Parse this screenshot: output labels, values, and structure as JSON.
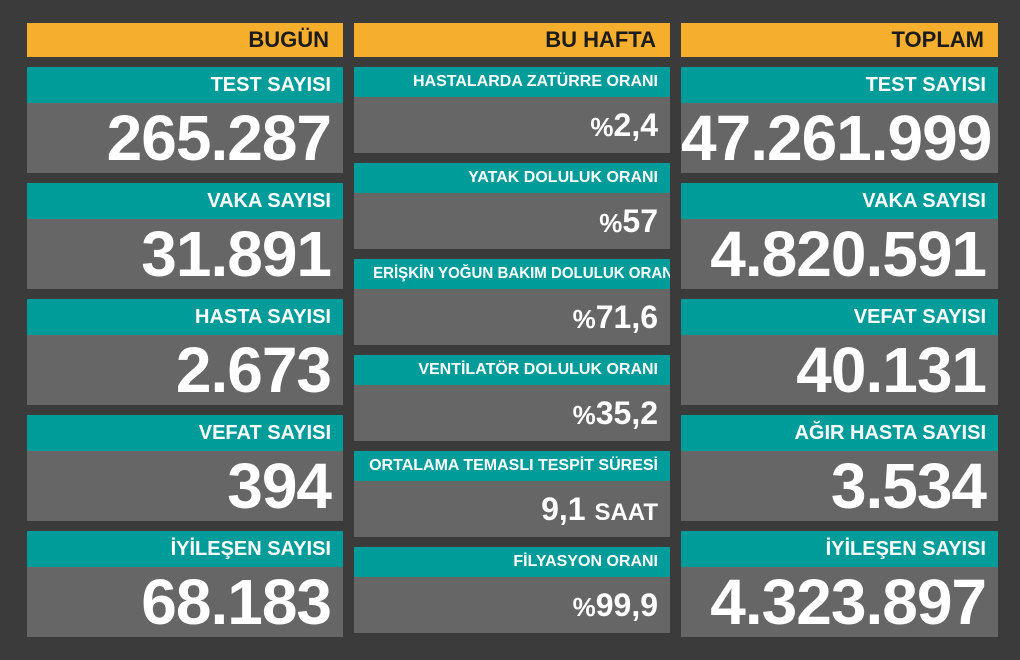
{
  "columns": {
    "today": {
      "header": "BUGÜN",
      "cards": [
        {
          "label": "TEST SAYISI",
          "value": "265.287"
        },
        {
          "label": "VAKA SAYISI",
          "value": "31.891"
        },
        {
          "label": "HASTA SAYISI",
          "value": "2.673"
        },
        {
          "label": "VEFAT SAYISI",
          "value": "394"
        },
        {
          "label": "İYİLEŞEN SAYISI",
          "value": "68.183"
        }
      ]
    },
    "week": {
      "header": "BU HAFTA",
      "cards": [
        {
          "label": "HASTALARDA ZATÜRRE ORANI",
          "prefix": "%",
          "value": "2,4"
        },
        {
          "label": "YATAK DOLULUK ORANI",
          "prefix": "%",
          "value": "57"
        },
        {
          "label": "ERİŞKİN YOĞUN BAKIM DOLULUK ORANI",
          "prefix": "%",
          "value": "71,6"
        },
        {
          "label": "VENTİLATÖR DOLULUK ORANI",
          "prefix": "%",
          "value": "35,2"
        },
        {
          "label": "ORTALAMA TEMASLI TESPİT SÜRESİ",
          "value": "9,1",
          "unit": "SAAT"
        },
        {
          "label": "FİLYASYON ORANI",
          "prefix": "%",
          "value": "99,9"
        }
      ]
    },
    "total": {
      "header": "TOPLAM",
      "cards": [
        {
          "label": "TEST SAYISI",
          "value": "47.261.999"
        },
        {
          "label": "VAKA SAYISI",
          "value": "4.820.591"
        },
        {
          "label": "VEFAT SAYISI",
          "value": "40.131"
        },
        {
          "label": "AĞIR HASTA SAYISI",
          "value": "3.534"
        },
        {
          "label": "İYİLEŞEN SAYISI",
          "value": "4.323.897"
        }
      ]
    }
  },
  "colors": {
    "background": "#3b3b3b",
    "header": "#f6ae2d",
    "label_bar": "#009c9a",
    "card_body": "#666666",
    "text": "#ffffff"
  }
}
